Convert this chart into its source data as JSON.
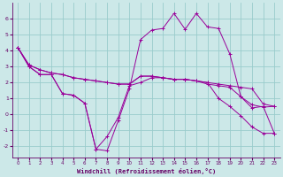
{
  "background_color": "#cce8e8",
  "grid_color": "#99cccc",
  "line_color": "#990099",
  "xlim": [
    -0.5,
    23.5
  ],
  "ylim": [
    -2.7,
    7.0
  ],
  "yticks": [
    -2,
    -1,
    0,
    1,
    2,
    3,
    4,
    5,
    6
  ],
  "xticks": [
    0,
    1,
    2,
    3,
    4,
    5,
    6,
    7,
    8,
    9,
    10,
    11,
    12,
    13,
    14,
    15,
    16,
    17,
    18,
    19,
    20,
    21,
    22,
    23
  ],
  "xlabel": "Windchill (Refroidissement éolien,°C)",
  "series": [
    [
      4.2,
      3.1,
      2.8,
      2.6,
      2.5,
      2.3,
      2.2,
      2.1,
      2.0,
      1.9,
      1.9,
      2.4,
      2.4,
      2.3,
      2.2,
      2.2,
      2.1,
      2.0,
      1.9,
      1.8,
      1.7,
      1.6,
      0.65,
      0.5
    ],
    [
      4.2,
      3.1,
      2.8,
      2.6,
      2.5,
      2.3,
      2.2,
      2.1,
      2.0,
      1.9,
      1.9,
      2.4,
      2.4,
      2.3,
      2.2,
      2.2,
      2.1,
      2.0,
      1.0,
      0.5,
      -0.1,
      -0.8,
      -1.2,
      -1.2
    ],
    [
      4.2,
      3.0,
      2.5,
      2.5,
      1.3,
      1.2,
      0.7,
      -2.2,
      -2.3,
      -0.4,
      1.6,
      4.7,
      5.3,
      5.4,
      6.35,
      5.35,
      6.35,
      5.5,
      5.4,
      3.8,
      1.1,
      0.6,
      0.45,
      0.5
    ],
    [
      4.2,
      3.0,
      2.5,
      2.5,
      1.3,
      1.2,
      0.7,
      -2.2,
      -1.4,
      -0.2,
      1.8,
      2.0,
      2.3,
      2.3,
      2.2,
      2.2,
      2.1,
      1.9,
      1.8,
      1.7,
      1.1,
      0.4,
      0.5,
      -1.2
    ]
  ]
}
